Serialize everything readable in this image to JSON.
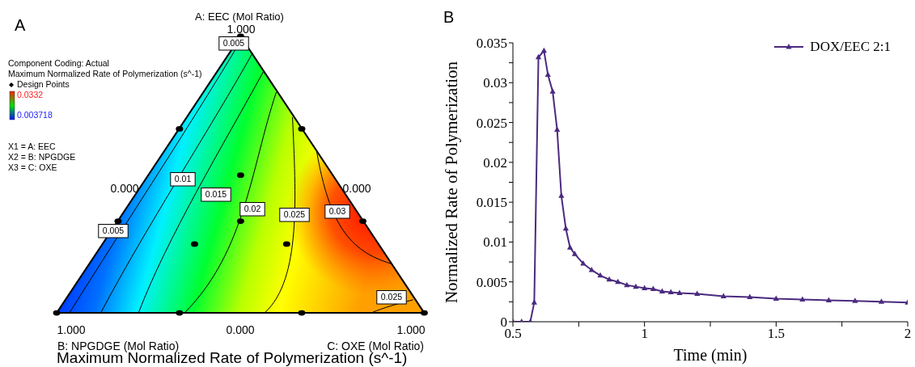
{
  "chart_data": [
    {
      "type": "other",
      "title": "Maximum Normalized Rate of Polymerization (s^-1)",
      "annotations": [
        "A",
        "A: EEC (Mol Ratio)",
        "1.000",
        "Component Coding: Actual",
        "Maximum Normalized Rate of Polymerization (s^-1)",
        "Design Points",
        "0.0332",
        "0.003718",
        "X1 = A: EEC",
        "X2 = B: NPGDGE",
        "X3 = C: OXE",
        "0.000",
        "0.000",
        "1.000",
        "0.000",
        "1.000",
        "B: NPGDGE (Mol Ratio)",
        "C: OXE (Mol Ratio)",
        "0.005",
        "0.01",
        "0.015",
        "0.02",
        "0.025",
        "0.03",
        "0.005",
        "0.025"
      ]
    },
    {
      "type": "line",
      "xlabel": "Time (min)",
      "ylabel": "Normalized Rate of Polymerization",
      "annotations": [
        "B"
      ],
      "legend": "top right",
      "marker": "triangle",
      "line_style": "solid",
      "x": [
        0.5,
        0.533,
        0.566,
        0.581,
        0.597,
        0.618,
        0.633,
        0.651,
        0.668,
        0.684,
        0.701,
        0.717,
        0.735,
        0.767,
        0.799,
        0.832,
        0.866,
        0.899,
        0.933,
        0.967,
        1.0,
        1.033,
        1.067,
        1.1,
        1.133,
        1.2,
        1.3,
        1.4,
        1.5,
        1.6,
        1.7,
        1.8,
        1.9,
        2.0
      ],
      "series": [
        {
          "name": "DOX/EEC 2:1",
          "color": "#4b2a7f",
          "values": [
            0,
            0,
            0,
            0.0024,
            0.0332,
            0.034,
            0.031,
            0.0289,
            0.0241,
            0.0158,
            0.0117,
            0.0093,
            0.0085,
            0.0073,
            0.0065,
            0.0058,
            0.0053,
            0.005,
            0.0046,
            0.0044,
            0.0042,
            0.0041,
            0.0038,
            0.0037,
            0.0036,
            0.0035,
            0.0032,
            0.0031,
            0.0029,
            0.0028,
            0.0027,
            0.0026,
            0.0025,
            0.0024
          ]
        }
      ],
      "xlim": [
        0.5,
        2
      ],
      "xticks": [
        0.5,
        {
          "value": 0.75,
          "label": null
        },
        1,
        {
          "value": 1.25,
          "label": null
        },
        1.5,
        {
          "value": 1.75,
          "label": null
        },
        2
      ],
      "ylim": [
        0,
        0.035
      ],
      "yticks": [
        0,
        {
          "value": 0.0025,
          "label": null
        },
        0.005,
        {
          "value": 0.0075,
          "label": null
        },
        0.01,
        {
          "value": 0.0125,
          "label": null
        },
        0.015,
        {
          "value": 0.0175,
          "label": null
        },
        0.02,
        {
          "value": 0.0225,
          "label": null
        },
        0.025,
        {
          "value": 0.0275,
          "label": null
        },
        0.03,
        {
          "value": 0.0325,
          "label": null
        },
        0.035
      ]
    }
  ]
}
